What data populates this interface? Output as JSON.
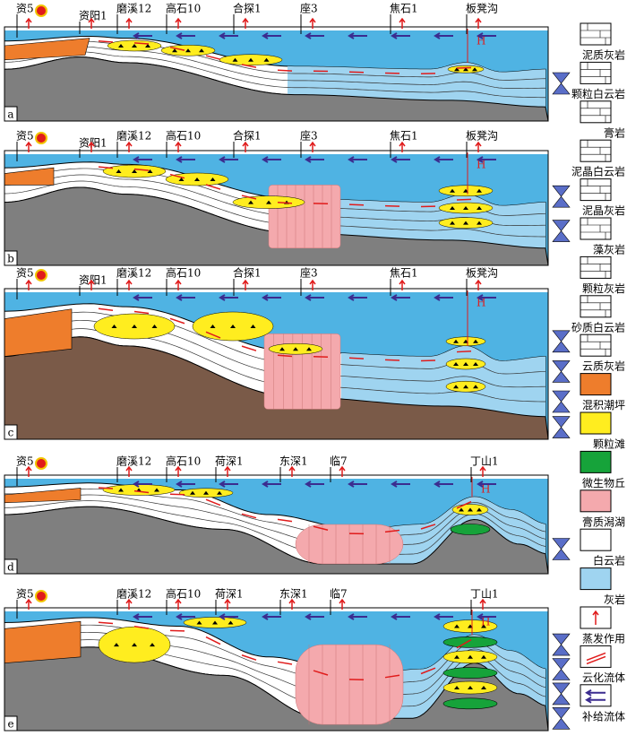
{
  "panels": [
    {
      "letter": "a",
      "wells": [
        "资5",
        "资阳1",
        "磨溪12",
        "高石10",
        "合探1",
        "座3",
        "焦石1",
        "板凳沟"
      ],
      "marker": "H"
    },
    {
      "letter": "b",
      "wells": [
        "资5",
        "资阳1",
        "磨溪12",
        "高石10",
        "合探1",
        "座3",
        "焦石1",
        "板凳沟"
      ],
      "marker": "H"
    },
    {
      "letter": "c",
      "wells": [
        "资5",
        "资阳1",
        "磨溪12",
        "高石10",
        "合探1",
        "座3",
        "焦石1",
        "板凳沟"
      ],
      "marker": "H"
    },
    {
      "letter": "d",
      "wells": [
        "资5",
        "磨溪12",
        "高石10",
        "荷深1",
        "东深1",
        "临7",
        "丁山1"
      ],
      "marker": "H"
    },
    {
      "letter": "e",
      "wells": [
        "资5",
        "磨溪12",
        "高石10",
        "荷深1",
        "东深1",
        "临7",
        "丁山1"
      ],
      "marker": "H"
    }
  ],
  "legend": [
    "泥质灰岩",
    "颗粒白云岩",
    "膏岩",
    "泥晶白云岩",
    "泥晶灰岩",
    "藻灰岩",
    "颗粒灰岩",
    "砂质白云岩",
    "云质灰岩",
    "混积潮坪",
    "颗粒滩",
    "微生物丘",
    "膏质潟湖",
    "白云岩",
    "灰岩",
    "蒸发作用",
    "云化流体",
    "补给流体"
  ]
}
